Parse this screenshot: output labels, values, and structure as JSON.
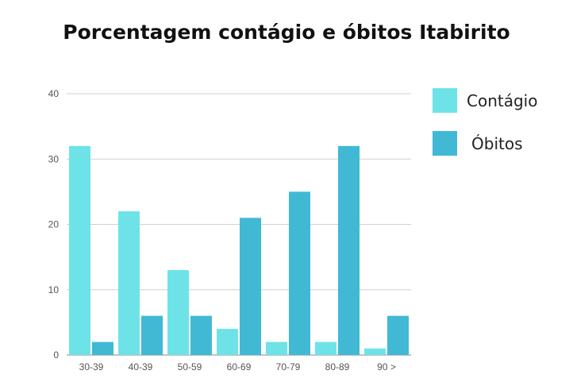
{
  "chart_data": {
    "type": "bar",
    "title": "Porcentagem contágio e óbitos Itabirito",
    "xlabel": "",
    "ylabel": "",
    "categories": [
      "30-39",
      "40-39",
      "50-59",
      "60-69",
      "70-79",
      "80-89",
      "90 >"
    ],
    "series": [
      {
        "name": "Contágio",
        "color": "#6de3e8",
        "values": [
          32,
          22,
          13,
          4,
          2,
          2,
          1
        ]
      },
      {
        "name": "Óbitos",
        "color": "#41b9d5",
        "values": [
          2,
          6,
          6,
          21,
          25,
          32,
          6
        ]
      }
    ],
    "ylim": [
      0,
      40
    ],
    "yticks": [
      0,
      10,
      20,
      30,
      40
    ],
    "grid": true,
    "legend": "right"
  }
}
